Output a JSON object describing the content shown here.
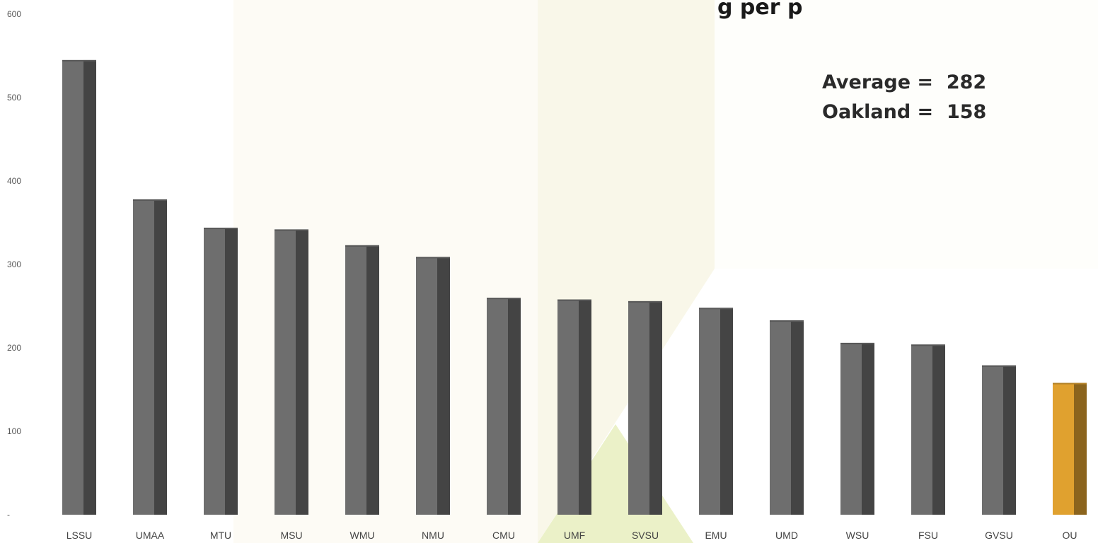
{
  "chart_data": {
    "type": "bar",
    "title_fragment": "g per p",
    "categories": [
      "LSSU",
      "UMAA",
      "MTU",
      "MSU",
      "WMU",
      "NMU",
      "CMU",
      "UMF",
      "SVSU",
      "EMU",
      "UMD",
      "WSU",
      "FSU",
      "GVSU",
      "OU"
    ],
    "values": [
      545,
      378,
      344,
      342,
      323,
      309,
      260,
      258,
      256,
      248,
      233,
      206,
      204,
      179,
      158
    ],
    "colors": [
      "#6e6e6e",
      "#6e6e6e",
      "#6e6e6e",
      "#6e6e6e",
      "#6e6e6e",
      "#6e6e6e",
      "#6e6e6e",
      "#6e6e6e",
      "#6e6e6e",
      "#6e6e6e",
      "#6e6e6e",
      "#6e6e6e",
      "#6e6e6e",
      "#6e6e6e",
      "#e0a12f"
    ],
    "highlight_color": "#e0a12f",
    "bar_color": "#6e6e6e",
    "yticks": [
      {
        "value": 0,
        "label": "-"
      },
      {
        "value": 100,
        "label": "100"
      },
      {
        "value": 200,
        "label": "200"
      },
      {
        "value": 300,
        "label": "300"
      },
      {
        "value": 400,
        "label": "400"
      },
      {
        "value": 500,
        "label": "500"
      },
      {
        "value": 600,
        "label": "600"
      }
    ],
    "ylim": [
      0,
      600
    ],
    "grid": false,
    "annotations": [
      "Average =  282",
      "Oakland =  158"
    ]
  }
}
